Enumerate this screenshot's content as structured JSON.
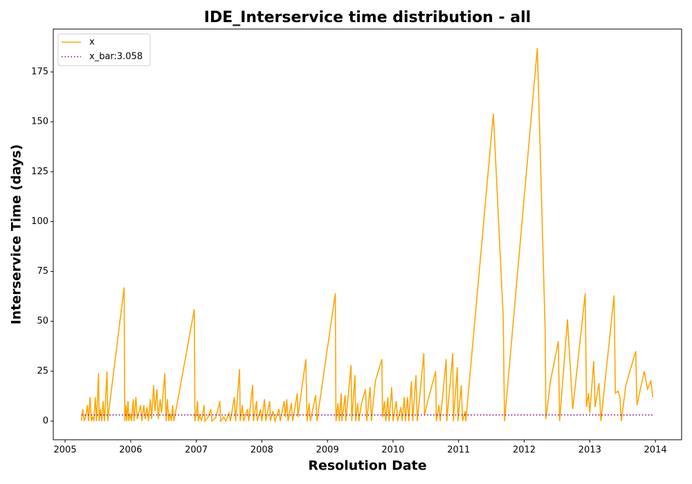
{
  "chart_data": {
    "type": "line",
    "title": "IDE_Interservice time distribution - all",
    "x_label": "Resolution Date",
    "y_label": "Interservice Time (days)",
    "xlim": [
      2004.82,
      2014.4
    ],
    "ylim": [
      -9.35,
      196.5
    ],
    "xticks": [
      2005,
      2006,
      2007,
      2008,
      2009,
      2010,
      2011,
      2012,
      2013,
      2014
    ],
    "yticks": [
      0,
      25,
      50,
      75,
      100,
      125,
      150,
      175
    ],
    "grid": false,
    "legend": "upper left",
    "series": [
      {
        "name": "x",
        "color": "#ffa500",
        "linestyle": "solid",
        "x": [
          2005.25,
          2005.27,
          2005.29,
          2005.32,
          2005.34,
          2005.36,
          2005.38,
          2005.4,
          2005.42,
          2005.44,
          2005.46,
          2005.48,
          2005.51,
          2005.52,
          2005.54,
          2005.56,
          2005.58,
          2005.6,
          2005.64,
          2005.65,
          2005.67,
          2005.9,
          2005.91,
          2005.93,
          2005.94,
          2005.96,
          2005.97,
          2005.99,
          2006.01,
          2006.04,
          2006.05,
          2006.08,
          2006.1,
          2006.15,
          2006.17,
          2006.2,
          2006.22,
          2006.25,
          2006.27,
          2006.3,
          2006.32,
          2006.35,
          2006.37,
          2006.4,
          2006.42,
          2006.45,
          2006.47,
          2006.52,
          2006.54,
          2006.56,
          2006.58,
          2006.6,
          2006.62,
          2006.64,
          2006.66,
          2006.97,
          2006.98,
          2007.0,
          2007.02,
          2007.03,
          2007.05,
          2007.08,
          2007.12,
          2007.13,
          2007.18,
          2007.22,
          2007.24,
          2007.3,
          2007.36,
          2007.37,
          2007.42,
          2007.45,
          2007.5,
          2007.52,
          2007.58,
          2007.6,
          2007.66,
          2007.67,
          2007.7,
          2007.72,
          2007.78,
          2007.8,
          2007.86,
          2007.87,
          2007.92,
          2007.93,
          2007.98,
          2008.0,
          2008.04,
          2008.06,
          2008.12,
          2008.13,
          2008.17,
          2008.2,
          2008.26,
          2008.28,
          2008.34,
          2008.36,
          2008.38,
          2008.4,
          2008.45,
          2008.47,
          2008.54,
          2008.55,
          2008.67,
          2008.69,
          2008.72,
          2008.74,
          2008.82,
          2008.84,
          2009.12,
          2009.13,
          2009.16,
          2009.18,
          2009.21,
          2009.22,
          2009.27,
          2009.28,
          2009.36,
          2009.37,
          2009.42,
          2009.43,
          2009.46,
          2009.48,
          2009.52,
          2009.58,
          2009.6,
          2009.65,
          2009.67,
          2009.73,
          2009.83,
          2009.84,
          2009.87,
          2009.89,
          2009.92,
          2009.94,
          2009.98,
          2010.0,
          2010.05,
          2010.07,
          2010.12,
          2010.14,
          2010.17,
          2010.19,
          2010.22,
          2010.24,
          2010.28,
          2010.3,
          2010.35,
          2010.37,
          2010.47,
          2010.48,
          2010.53,
          2010.65,
          2010.66,
          2010.7,
          2010.72,
          2010.81,
          2010.82,
          2010.91,
          2010.92,
          2010.98,
          2010.99,
          2011.04,
          2011.06,
          2011.1,
          2011.11,
          2011.53,
          2011.68,
          2011.7,
          2012.2,
          2012.32,
          2012.33,
          2012.4,
          2012.52,
          2012.54,
          2012.66,
          2012.74,
          2012.93,
          2012.95,
          2012.98,
          2013.0,
          2013.06,
          2013.08,
          2013.14,
          2013.17,
          2013.37,
          2013.39,
          2013.43,
          2013.46,
          2013.48,
          2013.55,
          2013.7,
          2013.72,
          2013.83,
          2013.88,
          2013.93,
          2013.96
        ],
        "values": [
          0,
          6,
          0,
          3,
          8,
          0,
          12,
          0,
          2,
          0,
          12,
          0,
          24,
          0,
          6,
          0,
          10,
          0,
          25,
          0,
          6,
          67,
          0,
          8,
          0,
          10,
          0,
          4,
          0,
          11,
          0,
          12,
          1,
          8,
          0,
          8,
          1,
          7,
          0,
          11,
          1,
          18,
          5,
          16,
          1,
          11,
          4,
          24,
          0,
          11,
          0,
          4,
          0,
          8,
          0,
          56,
          0,
          4,
          10,
          0,
          3,
          0,
          8,
          0,
          2,
          6,
          0,
          2,
          10,
          0,
          2,
          0,
          4,
          0,
          12,
          0,
          26,
          0,
          8,
          0,
          6,
          0,
          18,
          0,
          10,
          0,
          6,
          0,
          11,
          0,
          10,
          0,
          5,
          0,
          6,
          0,
          10,
          2,
          11,
          0,
          9,
          0,
          14,
          2,
          31,
          0,
          9,
          0,
          13,
          0,
          64,
          0,
          9,
          0,
          14,
          0,
          13,
          0,
          28,
          0,
          23,
          0,
          9,
          0,
          9,
          16,
          0,
          17,
          0,
          20,
          31,
          2,
          10,
          0,
          12,
          0,
          17,
          0,
          10,
          0,
          7,
          0,
          12,
          0,
          12,
          0,
          20,
          0,
          23,
          0,
          34,
          3,
          10,
          25,
          0,
          8,
          0,
          31,
          0,
          34,
          0,
          27,
          0,
          18,
          0,
          5,
          0,
          154,
          52,
          0,
          187,
          45,
          1,
          20,
          40,
          0,
          51,
          6,
          64,
          7,
          14,
          4,
          30,
          7,
          19,
          0,
          63,
          14,
          15,
          12,
          0,
          18,
          35,
          8,
          25,
          16,
          20,
          12
        ]
      },
      {
        "name": "x_bar:3.058",
        "color": "#800080",
        "linestyle": "dotted",
        "x": [
          2005.25,
          2013.96
        ],
        "values": [
          3.058,
          3.058
        ]
      }
    ]
  }
}
